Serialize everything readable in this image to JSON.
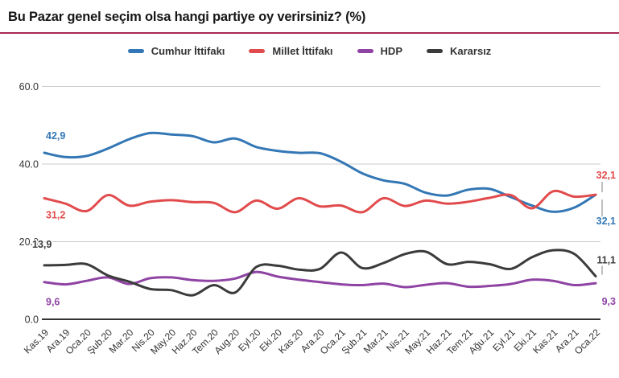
{
  "header": {
    "title": "Bu Pazar genel seçim olsa hangi partiye oy verirsiniz? (%)"
  },
  "colors": {
    "divider": "#a92a56",
    "grid": "#cccccc",
    "baseline": "#333333",
    "tick_text": "#333333",
    "leader": "#aaaaaa"
  },
  "chart_data": {
    "type": "line",
    "title": "Bu Pazar genel seçim olsa hangi partiye oy verirsiniz? (%)",
    "grid": true,
    "legend_position": "top",
    "ylim": [
      0,
      60
    ],
    "y_tick_labels": [
      "0.0",
      "20.0",
      "40.0",
      "60.0"
    ],
    "y_tick_values": [
      0,
      20,
      40,
      60
    ],
    "categories": [
      "Kas.19",
      "Ara.19",
      "Oca.20",
      "Şub.20",
      "Mar.20",
      "Nis.20",
      "May.20",
      "Haz.20",
      "Tem.20",
      "Aug.20",
      "Eyl.20",
      "Eki.20",
      "Kas.20",
      "Ara.20",
      "Oca.21",
      "Şub.21",
      "Mar.21",
      "Nis.21",
      "May.21",
      "Haz.21",
      "Tem.21",
      "Ağu.21",
      "Eyl.21",
      "Eki.21",
      "Kas.21",
      "Ara.21",
      "Oca.22"
    ],
    "series": [
      {
        "name": "Cumhur İttifakı",
        "key": "cumhur",
        "color": "#3377b5",
        "start_label": "42,9",
        "end_label": "32,1",
        "values": [
          42.9,
          41.8,
          42.1,
          44.0,
          46.4,
          48.0,
          47.6,
          47.2,
          45.6,
          46.6,
          44.4,
          43.4,
          42.9,
          42.8,
          40.6,
          37.6,
          35.8,
          34.9,
          32.6,
          31.9,
          33.4,
          33.6,
          31.5,
          29.3,
          27.7,
          28.8,
          32.1
        ]
      },
      {
        "name": "Millet İttifakı",
        "key": "millet",
        "color": "#e14b4d",
        "start_label": "31,2",
        "end_label": "32,1",
        "values": [
          31.2,
          29.8,
          27.9,
          32.0,
          29.3,
          30.3,
          30.7,
          30.2,
          30.0,
          27.6,
          30.6,
          28.5,
          31.2,
          29.1,
          29.3,
          27.6,
          31.2,
          29.2,
          30.6,
          29.8,
          30.3,
          31.3,
          32.0,
          28.6,
          33.0,
          31.6,
          32.1
        ]
      },
      {
        "name": "HDP",
        "key": "hdp",
        "color": "#8f44a3",
        "start_label": "9,6",
        "end_label": "9,3",
        "values": [
          9.6,
          9.0,
          9.9,
          10.8,
          9.1,
          10.6,
          10.8,
          10.1,
          9.9,
          10.5,
          12.2,
          11.0,
          10.2,
          9.6,
          9.0,
          8.8,
          9.2,
          8.3,
          8.9,
          9.3,
          8.4,
          8.6,
          9.1,
          10.2,
          9.9,
          8.8,
          9.3
        ]
      },
      {
        "name": "Kararsız",
        "key": "kararsiz",
        "color": "#3b3b3b",
        "start_label": "13,9",
        "end_label": "11,1",
        "values": [
          13.9,
          14.0,
          14.2,
          11.3,
          9.7,
          7.8,
          7.5,
          6.2,
          8.8,
          6.9,
          13.5,
          13.8,
          12.8,
          13.0,
          17.2,
          13.2,
          14.5,
          16.8,
          17.4,
          14.2,
          14.8,
          14.2,
          13.0,
          16.0,
          17.8,
          16.8,
          11.1
        ]
      }
    ]
  }
}
